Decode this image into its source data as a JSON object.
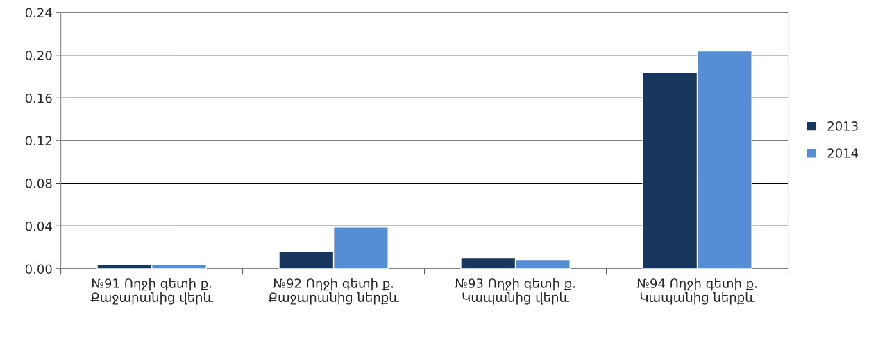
{
  "chart_data": {
    "type": "bar",
    "categories": [
      "№91 Ողջի գետի ք.\nՔաջարանից վերև",
      "№92 Ողջի գետի ք.\nՔաջարանից ներքև",
      "№93 Ողջի գետի ք.\nԿապանից վերև",
      "№94 Ողջի գետի ք.\nԿապանից ներքև"
    ],
    "series": [
      {
        "name": "2013",
        "color": "#17375e",
        "values": [
          0.004,
          0.016,
          0.01,
          0.184
        ]
      },
      {
        "name": "2014",
        "color": "#558ed5",
        "values": [
          0.004,
          0.039,
          0.008,
          0.204
        ]
      }
    ],
    "ylim": [
      0,
      0.24
    ],
    "yticks": [
      {
        "value": 0,
        "label": "0.00"
      },
      {
        "value": 0.04,
        "label": "0.04"
      },
      {
        "value": 0.08,
        "label": "0.08"
      },
      {
        "value": 0.12,
        "label": "0.12"
      },
      {
        "value": 0.16,
        "label": "0.16"
      },
      {
        "value": 0.2,
        "label": "0.20"
      },
      {
        "value": 0.24,
        "label": "0.24"
      }
    ],
    "grid": "y",
    "legend": "right"
  }
}
